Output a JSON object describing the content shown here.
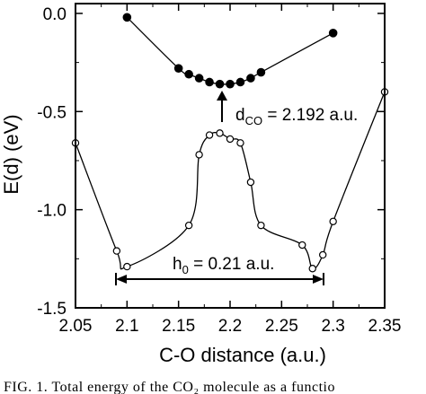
{
  "chart_data": {
    "type": "line",
    "title": "",
    "xlabel": "C-O distance (a.u.)",
    "ylabel": "E(d) (eV)",
    "xlim": [
      2.05,
      2.35
    ],
    "ylim": [
      -1.5,
      0.05
    ],
    "x_ticks": [
      2.05,
      2.1,
      2.15,
      2.2,
      2.25,
      2.3,
      2.35
    ],
    "x_tick_labels": [
      "2.05",
      "2.1",
      "2.15",
      "2.2",
      "2.25",
      "2.3",
      "2.35"
    ],
    "y_ticks": [
      0.0,
      -0.5,
      -1.0,
      -1.5
    ],
    "y_tick_labels": [
      "0.0",
      "-0.5",
      "-1.0",
      "-1.5"
    ],
    "grid": false,
    "series": [
      {
        "marker": "filled-circle",
        "x": [
          2.1,
          2.15,
          2.16,
          2.17,
          2.18,
          2.19,
          2.2,
          2.21,
          2.22,
          2.23,
          2.3
        ],
        "y": [
          -0.02,
          -0.28,
          -0.31,
          -0.33,
          -0.35,
          -0.36,
          -0.36,
          -0.35,
          -0.33,
          -0.3,
          -0.1
        ]
      },
      {
        "marker": "open-circle",
        "x": [
          2.05,
          2.09,
          2.1,
          2.16,
          2.17,
          2.18,
          2.19,
          2.2,
          2.21,
          2.22,
          2.23,
          2.27,
          2.28,
          2.29,
          2.3,
          2.35
        ],
        "y": [
          -0.66,
          -1.21,
          -1.29,
          -1.08,
          -0.72,
          -0.62,
          -0.61,
          -0.64,
          -0.66,
          -0.86,
          -1.08,
          -1.18,
          -1.3,
          -1.23,
          -1.06,
          -0.4
        ]
      }
    ],
    "annotations": {
      "dco_label": "d",
      "dco_sub": "CO",
      "dco_rest": " = 2.192 a.u.",
      "dco_x": 2.192,
      "h0_label": "h",
      "h0_sub": "0",
      "h0_rest": " = 0.21 a.u.",
      "h0_x_range": [
        2.09,
        2.28
      ]
    },
    "caption": "FIG. 1. Total energy of the CO₂ molecule as a functio"
  }
}
